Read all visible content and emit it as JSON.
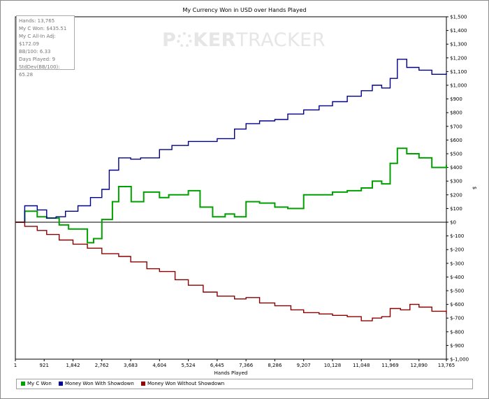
{
  "chart_data": {
    "type": "line",
    "title": "My Currency Won in USD over Hands Played",
    "xlabel": "Hands Played",
    "ylabel": "$",
    "xlim": [
      1,
      13765
    ],
    "ylim": [
      -1000,
      1500
    ],
    "x_ticks": [
      "1",
      "921",
      "1,842",
      "2,762",
      "3,683",
      "4,604",
      "5,524",
      "6,445",
      "7,366",
      "8,286",
      "9,207",
      "10,128",
      "11,048",
      "11,969",
      "12,890",
      "13,765"
    ],
    "x_tick_values": [
      1,
      921,
      1842,
      2762,
      3683,
      4604,
      5524,
      6445,
      7366,
      8286,
      9207,
      10128,
      11048,
      11969,
      12890,
      13765
    ],
    "y_ticks": [
      "$1,500",
      "$1,400",
      "$1,300",
      "$1,200",
      "$1,100",
      "$1,000",
      "$900",
      "$800",
      "$700",
      "$600",
      "$500",
      "$400",
      "$300",
      "$200",
      "$100",
      "$0",
      "$-100",
      "$-200",
      "$-300",
      "$-400",
      "$-500",
      "$-600",
      "$-700",
      "$-800",
      "$-900",
      "$-1,000"
    ],
    "y_tick_values": [
      1500,
      1400,
      1300,
      1200,
      1100,
      1000,
      900,
      800,
      700,
      600,
      500,
      400,
      300,
      200,
      100,
      0,
      -100,
      -200,
      -300,
      -400,
      -500,
      -600,
      -700,
      -800,
      -900,
      -1000
    ],
    "grid": false,
    "legend_position": "bottom",
    "stats": [
      "Hands: 13,765",
      "My C Won: $435.51",
      "My C All-In Adj: $172.09",
      "BB/100: 6.33",
      "Days Played: 9",
      "StdDev(BB/100): 65.28"
    ],
    "watermark": {
      "left": "P",
      "middle": "KER",
      "right": "TRACKER"
    },
    "series": [
      {
        "name": "My C Won",
        "color": "#00a000",
        "x": [
          1,
          300,
          700,
          1000,
          1400,
          1700,
          2300,
          2500,
          2762,
          3100,
          3300,
          3700,
          4100,
          4604,
          4900,
          5524,
          5900,
          6300,
          6700,
          7000,
          7366,
          7800,
          8286,
          8700,
          9207,
          9600,
          10128,
          10600,
          11048,
          11400,
          11700,
          11969,
          12200,
          12500,
          12890,
          13300,
          13765
        ],
        "y": [
          0,
          80,
          40,
          30,
          -20,
          -50,
          -150,
          -120,
          20,
          150,
          260,
          150,
          220,
          180,
          200,
          230,
          110,
          40,
          60,
          40,
          150,
          140,
          110,
          100,
          200,
          200,
          220,
          230,
          250,
          300,
          280,
          430,
          540,
          500,
          470,
          400,
          420
        ]
      },
      {
        "name": "Money Won With Showdown",
        "color": "#00008b",
        "x": [
          1,
          300,
          700,
          1000,
          1300,
          1600,
          2000,
          2400,
          2762,
          3000,
          3300,
          3683,
          4000,
          4604,
          5000,
          5524,
          6000,
          6445,
          7000,
          7366,
          7800,
          8286,
          8700,
          9207,
          9700,
          10128,
          10600,
          11048,
          11400,
          11700,
          11969,
          12200,
          12500,
          12890,
          13300,
          13765
        ],
        "y": [
          0,
          120,
          90,
          30,
          40,
          80,
          120,
          180,
          240,
          380,
          470,
          460,
          470,
          530,
          560,
          590,
          590,
          610,
          680,
          720,
          740,
          750,
          790,
          820,
          850,
          880,
          920,
          960,
          1000,
          980,
          1050,
          1190,
          1130,
          1110,
          1080,
          1090
        ]
      },
      {
        "name": "Money Won Without Showdown",
        "color": "#8b0000",
        "x": [
          1,
          300,
          700,
          1000,
          1400,
          1842,
          2300,
          2762,
          3300,
          3683,
          4200,
          4604,
          5100,
          5524,
          6000,
          6445,
          7000,
          7366,
          7800,
          8286,
          8800,
          9207,
          9700,
          10128,
          10600,
          11048,
          11400,
          11700,
          11969,
          12300,
          12600,
          12890,
          13300,
          13765
        ],
        "y": [
          0,
          -30,
          -60,
          -90,
          -130,
          -160,
          -190,
          -230,
          -250,
          -290,
          -340,
          -360,
          -420,
          -460,
          -510,
          -540,
          -560,
          -550,
          -590,
          -610,
          -640,
          -660,
          -670,
          -680,
          -690,
          -720,
          -700,
          -690,
          -630,
          -640,
          -600,
          -620,
          -650,
          -670
        ]
      }
    ]
  }
}
